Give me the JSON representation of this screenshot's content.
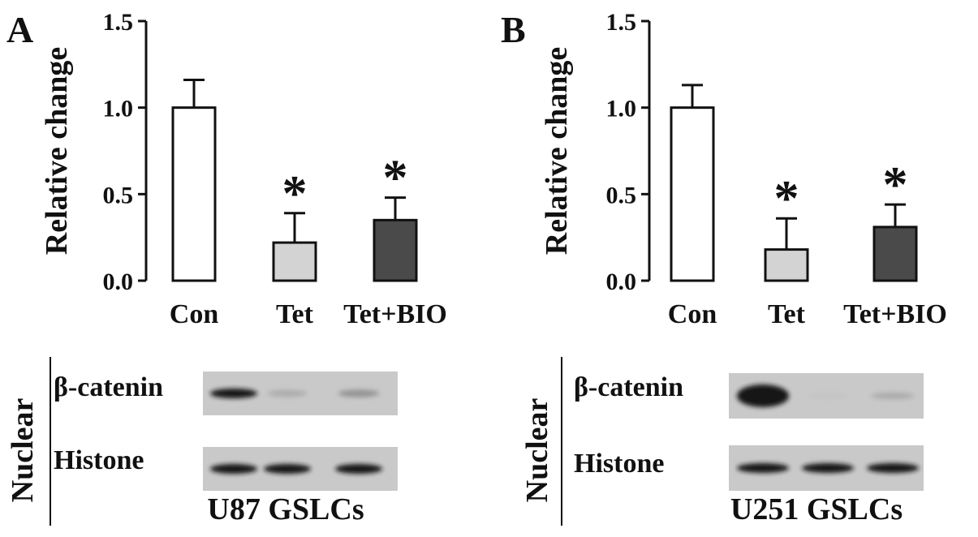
{
  "panels": [
    {
      "letter": "A",
      "chart_data": {
        "type": "bar",
        "categories": [
          "Con",
          "Tet",
          "Tet+BIO"
        ],
        "values": [
          1.0,
          0.22,
          0.35
        ],
        "errors": [
          0.16,
          0.17,
          0.13
        ],
        "significant": [
          false,
          true,
          true
        ],
        "significance_marker": "*",
        "ylabel": "Relative change",
        "ylim": [
          0,
          1.5
        ],
        "yticks": [
          "0.0",
          "0.5",
          "1.0",
          "1.5"
        ],
        "bar_colors": [
          "#ffffff",
          "#d3d3d3",
          "#4a4a4a"
        ]
      },
      "blot": {
        "side_label": "Nuclear",
        "rows": [
          "β-catenin",
          "Histone"
        ],
        "bands": [
          [
            1.0,
            0.35,
            0.5
          ],
          [
            1.0,
            1.0,
            1.0
          ]
        ],
        "caption": "U87 GSLCs"
      }
    },
    {
      "letter": "B",
      "chart_data": {
        "type": "bar",
        "categories": [
          "Con",
          "Tet",
          "Tet+BIO"
        ],
        "values": [
          1.0,
          0.18,
          0.31
        ],
        "errors": [
          0.13,
          0.18,
          0.13
        ],
        "significant": [
          false,
          true,
          true
        ],
        "significance_marker": "*",
        "ylabel": "Relative change",
        "ylim": [
          0,
          1.5
        ],
        "yticks": [
          "0.0",
          "0.5",
          "1.0",
          "1.5"
        ],
        "bar_colors": [
          "#ffffff",
          "#d3d3d3",
          "#4a4a4a"
        ]
      },
      "blot": {
        "side_label": "Nuclear",
        "rows": [
          "β-catenin",
          "Histone"
        ],
        "bands": [
          [
            1.0,
            0.08,
            0.35
          ],
          [
            1.0,
            1.0,
            1.0
          ]
        ],
        "caption": "U251 GSLCs"
      }
    }
  ]
}
